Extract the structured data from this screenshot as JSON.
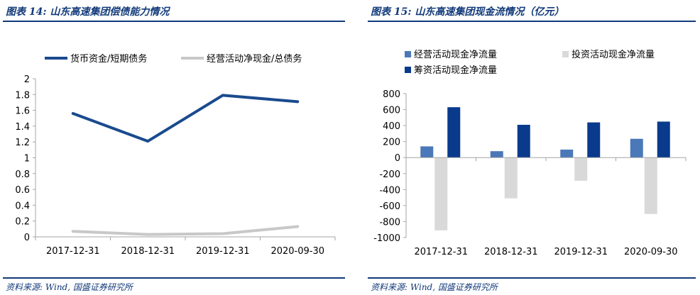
{
  "left": {
    "figure_title": "图表 14:  山东高速集团偿债能力情况",
    "source": "资料来源:  Wind,  国盛证券研究所"
  },
  "right": {
    "figure_title": "图表 15:  山东高速集团现金流情况（亿元）",
    "source": "资料来源:  Wind,  国盛证券研究所"
  },
  "chart_data": [
    {
      "type": "line",
      "title": "山东高速集团偿债能力情况",
      "categories": [
        "2017-12-31",
        "2018-12-31",
        "2019-12-31",
        "2020-09-30"
      ],
      "series": [
        {
          "name": "货币资金/短期债务",
          "values": [
            1.56,
            1.21,
            1.79,
            1.71
          ],
          "color": "#1a4a8e"
        },
        {
          "name": "经营活动净现金/总债务",
          "values": [
            0.07,
            0.03,
            0.04,
            0.13
          ],
          "color": "#c8c8c8"
        }
      ],
      "ylim": [
        0,
        2
      ],
      "yticks": [
        "0",
        "0.2",
        "0.4",
        "0.6",
        "0.8",
        "1",
        "1.2",
        "1.4",
        "1.6",
        "1.8",
        "2"
      ],
      "xlabel": "",
      "ylabel": "",
      "legend": "top"
    },
    {
      "type": "bar",
      "title": "山东高速集团现金流情况（亿元）",
      "categories": [
        "2017-12-31",
        "2018-12-31",
        "2019-12-31",
        "2020-09-30"
      ],
      "series": [
        {
          "name": "经营活动现金净流量",
          "values": [
            140,
            80,
            100,
            235
          ],
          "color": "#4a78b8"
        },
        {
          "name": "投资活动现金净流量",
          "values": [
            -910,
            -510,
            -290,
            -705
          ],
          "color": "#d9d9d9"
        },
        {
          "name": "筹资活动现金净流量",
          "values": [
            630,
            410,
            440,
            450
          ],
          "color": "#0a3a8c"
        }
      ],
      "ylim": [
        -1000,
        800
      ],
      "yticks": [
        "800",
        "600",
        "400",
        "200",
        "0",
        "-200",
        "-400",
        "-600",
        "-800",
        "-1000"
      ],
      "xlabel": "",
      "ylabel": "",
      "legend": "top"
    }
  ]
}
